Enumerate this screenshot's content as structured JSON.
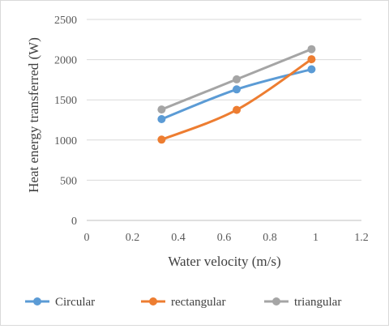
{
  "chart_data": {
    "type": "line",
    "title": "",
    "xlabel": "Water velocity (m/s)",
    "ylabel": "Heat energy transferred (W)",
    "xlim": [
      0,
      1.2
    ],
    "ylim": [
      0,
      2500
    ],
    "xticks": [
      "0",
      "0.2",
      "0.4",
      "0.6",
      "0.8",
      "1",
      "1.2"
    ],
    "yticks": [
      "0",
      "500",
      "1000",
      "1500",
      "2000",
      "2500"
    ],
    "grid": "horizontal",
    "legend_position": "bottom",
    "smooth": true,
    "series": [
      {
        "name": "Circular",
        "color": "#5b9bd5",
        "x": [
          0.327,
          0.655,
          0.982
        ],
        "y": [
          1260,
          1630,
          1880
        ]
      },
      {
        "name": "rectangular",
        "color": "#ed7d31",
        "x": [
          0.327,
          0.655,
          0.982
        ],
        "y": [
          1005,
          1375,
          2005
        ]
      },
      {
        "name": "triangular",
        "color": "#a5a5a5",
        "x": [
          0.327,
          0.655,
          0.982
        ],
        "y": [
          1380,
          1755,
          2130
        ]
      }
    ]
  }
}
